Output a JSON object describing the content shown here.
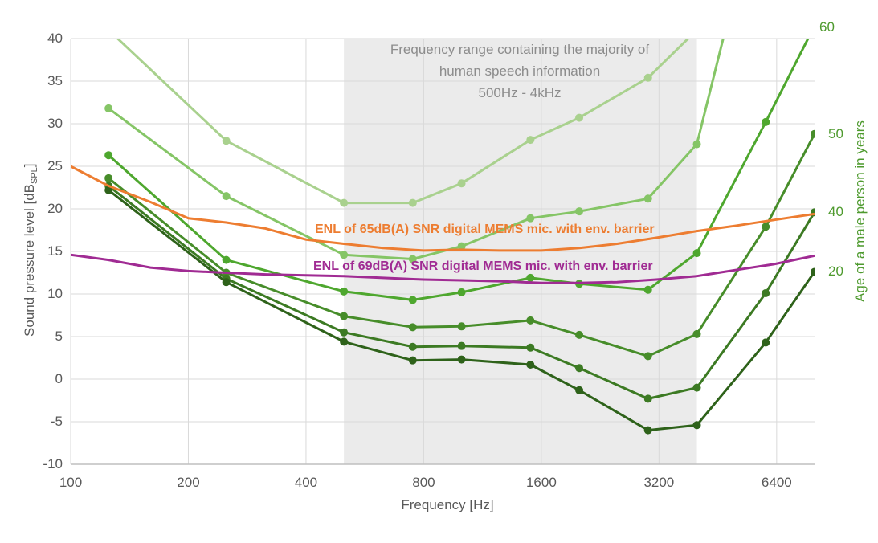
{
  "title": {
    "line1": "Frequency range containing the majority of",
    "line2": "human speech information",
    "line3": "500Hz - 4kHz"
  },
  "axes": {
    "x_title": "Frequency [Hz]",
    "y_left_title_pre": "Sound pressure level [dB",
    "y_left_title_sub": "SPL",
    "y_left_title_post": "]",
    "y_right_title": "Age of a male person in years"
  },
  "chart_data": {
    "type": "line",
    "x_scale": "log2",
    "x_range": [
      100,
      8000
    ],
    "y_range": [
      -10,
      40
    ],
    "x_ticks": [
      100,
      200,
      400,
      800,
      1600,
      3200,
      6400
    ],
    "y_ticks": [
      40,
      35,
      30,
      25,
      20,
      15,
      10,
      5,
      0,
      -5,
      -10
    ],
    "grid": "both",
    "band": {
      "from_hz": 500,
      "to_hz": 4000,
      "color": "#ebebeb",
      "meaning": "Frequency range containing the majority of human speech information 500Hz - 4kHz"
    },
    "colors": {
      "gridline": "#d9d9d9",
      "axis_line": "#bfbfbf",
      "tick_text": "#595959",
      "title_text": "#8c8c8c",
      "right_axis_green": "#4e9a2e",
      "orange": "#ED7D31",
      "purple": "#A02B93"
    },
    "series": [
      {
        "name": "age-curve-1",
        "end_label": null,
        "color": "#a9d18e",
        "points": [
          [
            125,
            41.0
          ],
          [
            250,
            28.0
          ],
          [
            500,
            20.7
          ],
          [
            750,
            20.7
          ],
          [
            1000,
            23.0
          ],
          [
            1500,
            28.1
          ],
          [
            2000,
            30.7
          ],
          [
            3000,
            35.4
          ],
          [
            4000,
            41.0
          ]
        ]
      },
      {
        "name": "age-curve-2",
        "end_label": null,
        "color": "#85c566",
        "points": [
          [
            125,
            31.8
          ],
          [
            250,
            21.5
          ],
          [
            500,
            14.6
          ],
          [
            750,
            14.1
          ],
          [
            1000,
            15.6
          ],
          [
            1500,
            18.9
          ],
          [
            2000,
            19.7
          ],
          [
            3000,
            21.2
          ],
          [
            4000,
            27.6
          ],
          [
            6000,
            60.0
          ]
        ]
      },
      {
        "name": "age-curve-60",
        "end_label": "60",
        "color": "#4ea72e",
        "points": [
          [
            125,
            26.3
          ],
          [
            250,
            14.0
          ],
          [
            500,
            10.3
          ],
          [
            750,
            9.3
          ],
          [
            1000,
            10.2
          ],
          [
            1500,
            11.9
          ],
          [
            2000,
            11.2
          ],
          [
            3000,
            10.5
          ],
          [
            4000,
            14.8
          ],
          [
            6000,
            30.2
          ],
          [
            8000,
            41.5
          ]
        ]
      },
      {
        "name": "age-curve-50",
        "end_label": "50",
        "color": "#478d2a",
        "points": [
          [
            125,
            23.6
          ],
          [
            250,
            12.5
          ],
          [
            500,
            7.4
          ],
          [
            750,
            6.1
          ],
          [
            1000,
            6.2
          ],
          [
            1500,
            6.9
          ],
          [
            2000,
            5.2
          ],
          [
            3000,
            2.7
          ],
          [
            4000,
            5.3
          ],
          [
            6000,
            17.9
          ],
          [
            8000,
            28.8
          ]
        ]
      },
      {
        "name": "age-curve-40",
        "end_label": "40",
        "color": "#3c7a23",
        "points": [
          [
            125,
            22.7
          ],
          [
            250,
            11.8
          ],
          [
            500,
            5.5
          ],
          [
            750,
            3.8
          ],
          [
            1000,
            3.9
          ],
          [
            1500,
            3.7
          ],
          [
            2000,
            1.3
          ],
          [
            3000,
            -2.3
          ],
          [
            4000,
            -1.0
          ],
          [
            6000,
            10.1
          ],
          [
            8000,
            19.6
          ]
        ]
      },
      {
        "name": "age-curve-20",
        "end_label": "20",
        "color": "#2e621a",
        "points": [
          [
            125,
            22.2
          ],
          [
            250,
            11.4
          ],
          [
            500,
            4.4
          ],
          [
            750,
            2.2
          ],
          [
            1000,
            2.3
          ],
          [
            1500,
            1.7
          ],
          [
            2000,
            -1.3
          ],
          [
            3000,
            -6.0
          ],
          [
            4000,
            -5.4
          ],
          [
            6000,
            4.3
          ],
          [
            8000,
            12.6
          ]
        ]
      },
      {
        "name": "mic-enl-65",
        "label": "ENL of 65dB(A) SNR digital MEMS mic. with env. barrier",
        "color": "#ED7D31",
        "markers": false,
        "points": [
          [
            100,
            25.0
          ],
          [
            125,
            22.7
          ],
          [
            160,
            20.8
          ],
          [
            200,
            18.9
          ],
          [
            250,
            18.4
          ],
          [
            315,
            17.7
          ],
          [
            400,
            16.4
          ],
          [
            500,
            15.9
          ],
          [
            630,
            15.4
          ],
          [
            800,
            15.1
          ],
          [
            1000,
            15.2
          ],
          [
            1250,
            15.1
          ],
          [
            1600,
            15.1
          ],
          [
            2000,
            15.4
          ],
          [
            2500,
            15.9
          ],
          [
            3150,
            16.6
          ],
          [
            4000,
            17.4
          ],
          [
            5000,
            18.0
          ],
          [
            6300,
            18.7
          ],
          [
            8000,
            19.4
          ]
        ]
      },
      {
        "name": "mic-enl-69",
        "label": "ENL of 69dB(A) SNR digital MEMS mic. with env. barrier",
        "color": "#A02B93",
        "markers": false,
        "points": [
          [
            100,
            14.6
          ],
          [
            125,
            14.0
          ],
          [
            160,
            13.1
          ],
          [
            200,
            12.7
          ],
          [
            250,
            12.5
          ],
          [
            315,
            12.3
          ],
          [
            400,
            12.2
          ],
          [
            500,
            12.1
          ],
          [
            630,
            11.9
          ],
          [
            800,
            11.7
          ],
          [
            1000,
            11.6
          ],
          [
            1250,
            11.5
          ],
          [
            1600,
            11.3
          ],
          [
            2000,
            11.3
          ],
          [
            2500,
            11.4
          ],
          [
            3150,
            11.7
          ],
          [
            4000,
            12.1
          ],
          [
            5000,
            12.8
          ],
          [
            6300,
            13.5
          ],
          [
            8000,
            14.5
          ]
        ]
      }
    ]
  }
}
